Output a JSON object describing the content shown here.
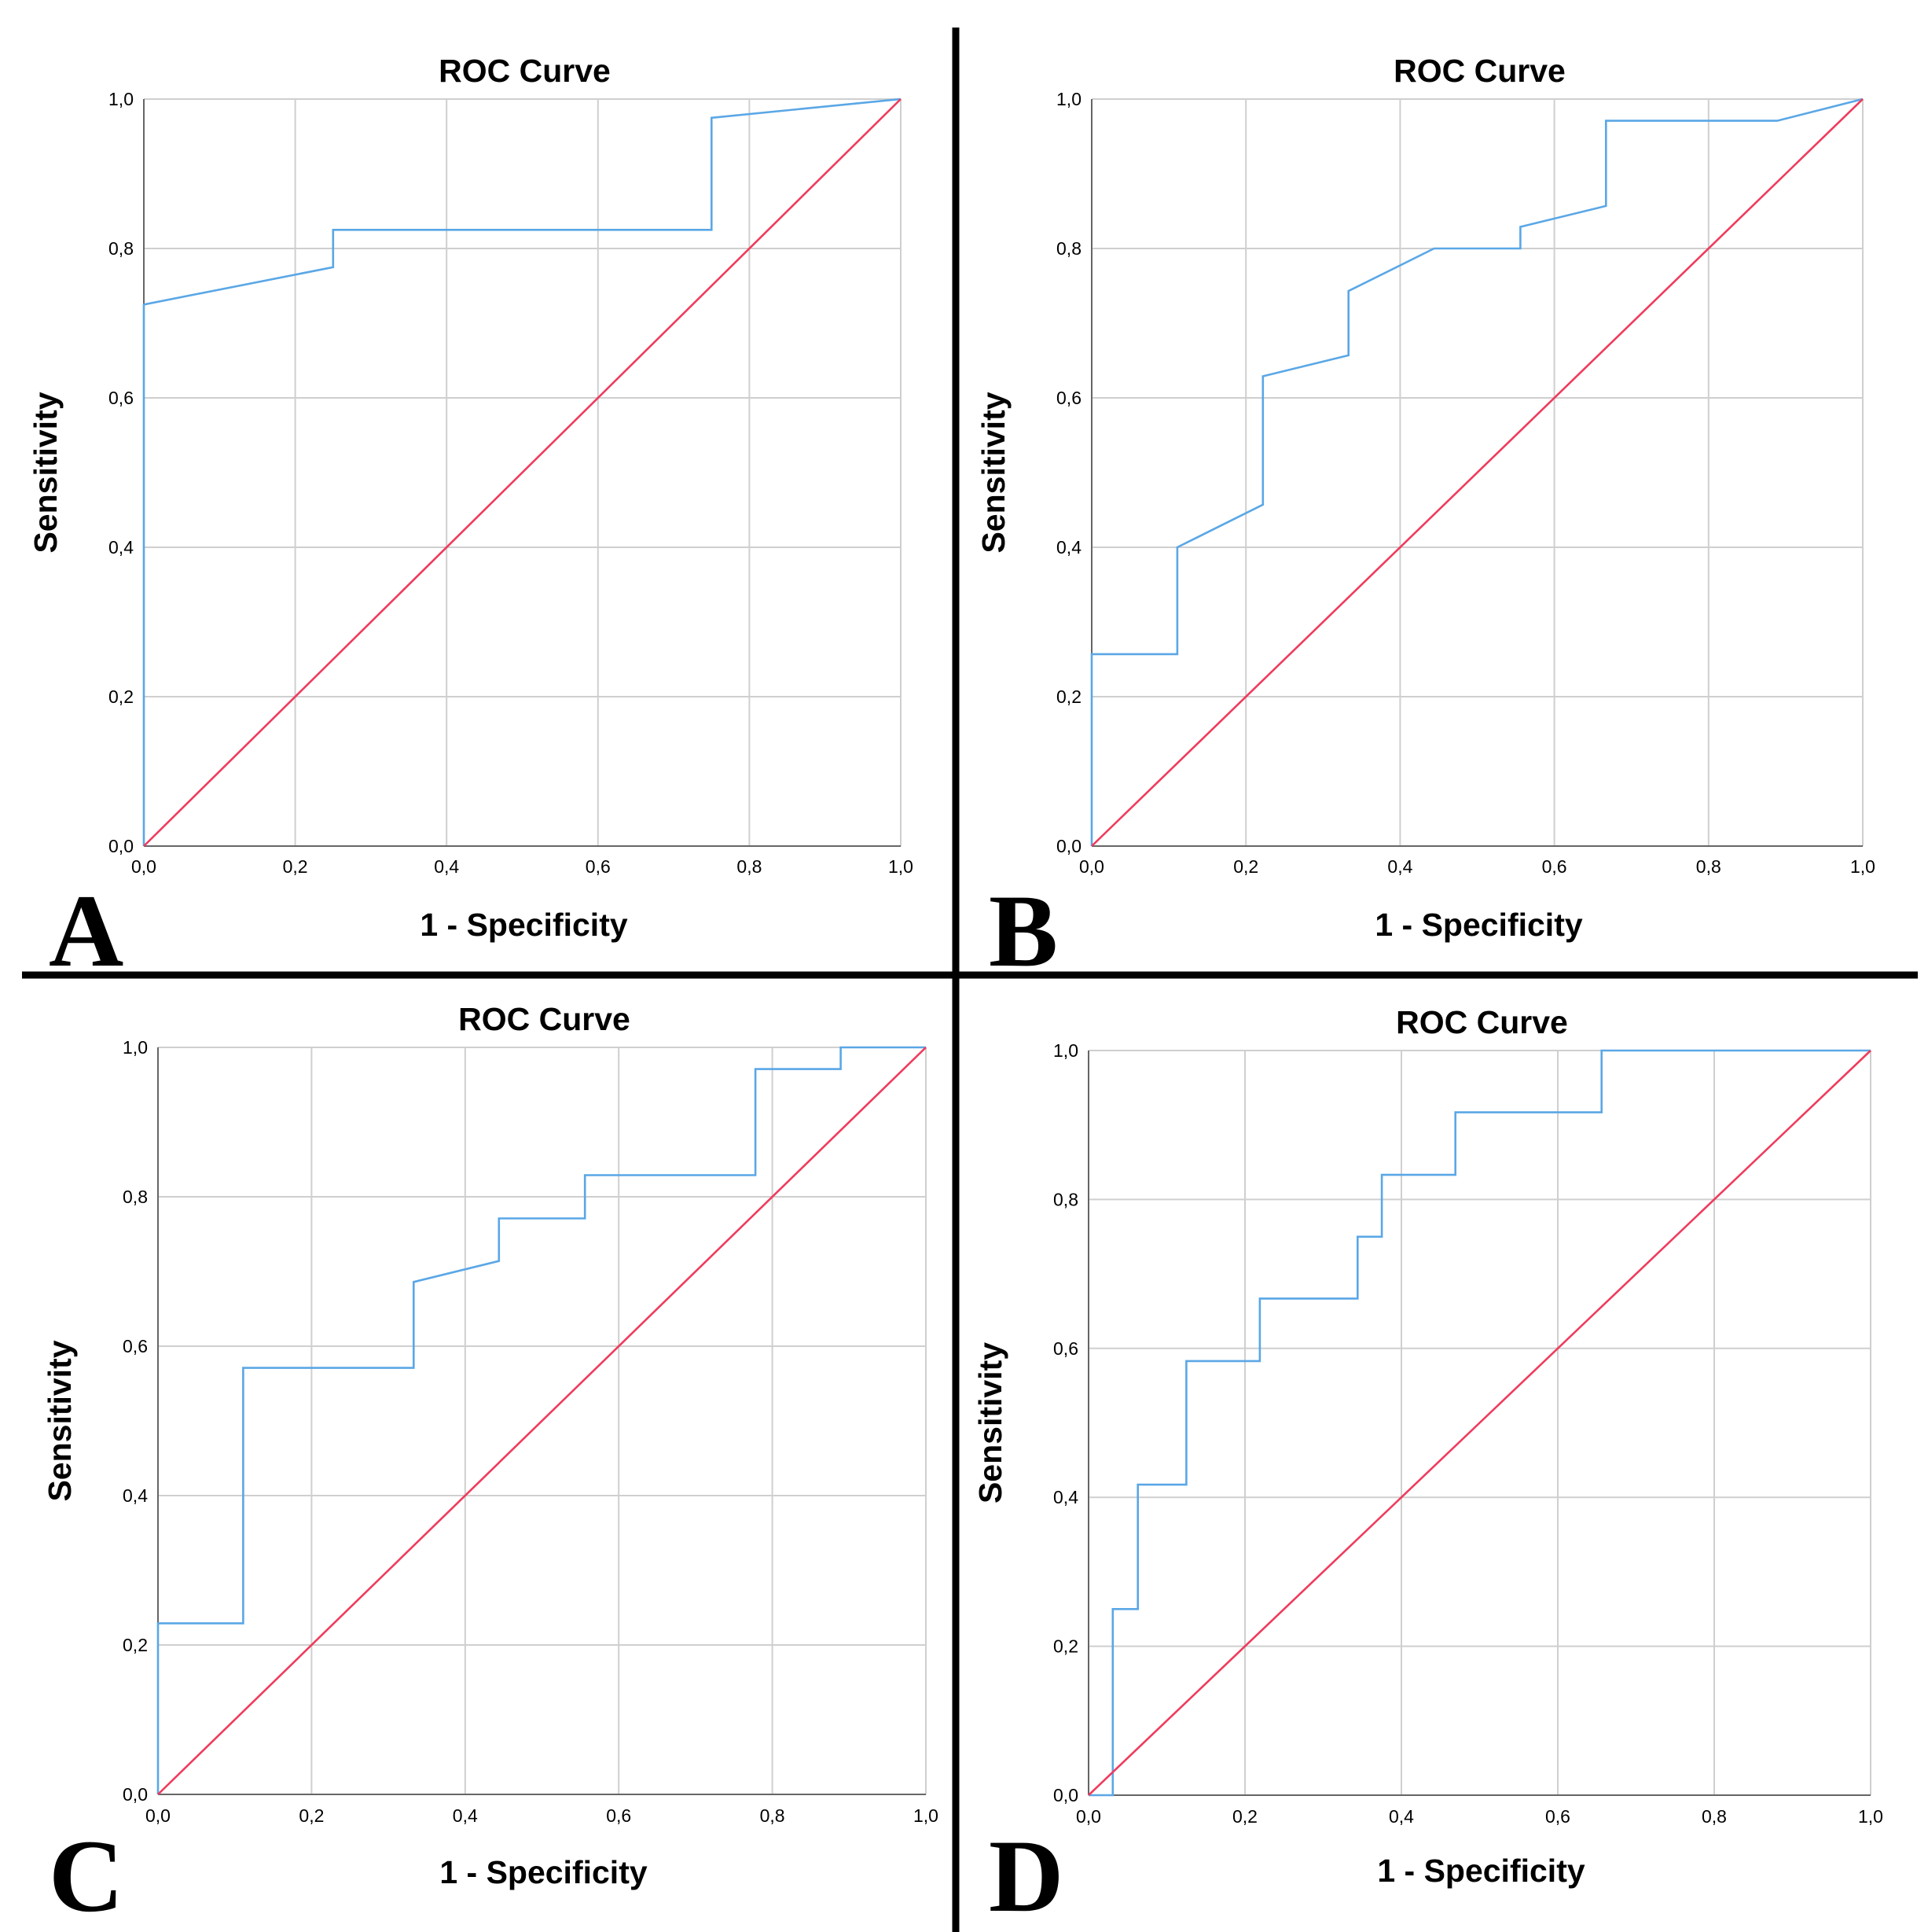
{
  "colors": {
    "roc_curve": "#5aa7e6",
    "reference_line": "#ef3b5d",
    "gridline": "#cfcfcf",
    "axis": "#666666",
    "separator": "#000000"
  },
  "chart_data": [
    {
      "type": "line",
      "panel_label": "A",
      "title": "ROC Curve",
      "xlabel": "1 - Specificity",
      "ylabel": "Sensitivity",
      "xlim": [
        0,
        1
      ],
      "ylim": [
        0,
        1
      ],
      "xticks": [
        "0,0",
        "0,2",
        "0,4",
        "0,6",
        "0,8",
        "1,0"
      ],
      "yticks": [
        "0,0",
        "0,2",
        "0,4",
        "0,6",
        "0,8",
        "1,0"
      ],
      "grid": true,
      "series": [
        {
          "name": "ROC curve",
          "x": [
            0,
            0,
            0.25,
            0.25,
            0.75,
            0.75,
            1.0
          ],
          "y": [
            0,
            0.725,
            0.775,
            0.825,
            0.825,
            0.975,
            1.0
          ]
        },
        {
          "name": "Reference line",
          "x": [
            0,
            1
          ],
          "y": [
            0,
            1
          ]
        }
      ]
    },
    {
      "type": "line",
      "panel_label": "B",
      "title": "ROC Curve",
      "xlabel": "1 - Specificity",
      "ylabel": "Sensitivity",
      "xlim": [
        0,
        1
      ],
      "ylim": [
        0,
        1
      ],
      "xticks": [
        "0,0",
        "0,2",
        "0,4",
        "0,6",
        "0,8",
        "1,0"
      ],
      "yticks": [
        "0,0",
        "0,2",
        "0,4",
        "0,6",
        "0,8",
        "1,0"
      ],
      "grid": true,
      "series": [
        {
          "name": "ROC curve",
          "x": [
            0,
            0,
            0.111,
            0.111,
            0.222,
            0.222,
            0.333,
            0.333,
            0.444,
            0.556,
            0.556,
            0.667,
            0.667,
            0.889,
            1.0
          ],
          "y": [
            0,
            0.257,
            0.257,
            0.4,
            0.457,
            0.629,
            0.657,
            0.743,
            0.8,
            0.8,
            0.829,
            0.857,
            0.971,
            0.971,
            1.0
          ]
        },
        {
          "name": "Reference line",
          "x": [
            0,
            1
          ],
          "y": [
            0,
            1
          ]
        }
      ]
    },
    {
      "type": "line",
      "panel_label": "C",
      "title": "ROC Curve",
      "xlabel": "1 - Specificity",
      "ylabel": "Sensitivity",
      "xlim": [
        0,
        1
      ],
      "ylim": [
        0,
        1
      ],
      "xticks": [
        "0,0",
        "0,2",
        "0,4",
        "0,6",
        "0,8",
        "1,0"
      ],
      "yticks": [
        "0,0",
        "0,2",
        "0,4",
        "0,6",
        "0,8",
        "1,0"
      ],
      "grid": true,
      "series": [
        {
          "name": "ROC curve",
          "x": [
            0,
            0,
            0.111,
            0.111,
            0.333,
            0.333,
            0.444,
            0.444,
            0.556,
            0.556,
            0.778,
            0.778,
            0.889,
            0.889,
            1.0
          ],
          "y": [
            0,
            0.229,
            0.229,
            0.571,
            0.571,
            0.686,
            0.714,
            0.771,
            0.771,
            0.829,
            0.829,
            0.971,
            0.971,
            1.0,
            1.0
          ]
        },
        {
          "name": "Reference line",
          "x": [
            0,
            1
          ],
          "y": [
            0,
            1
          ]
        }
      ]
    },
    {
      "type": "line",
      "panel_label": "D",
      "title": "ROC Curve",
      "xlabel": "1 - Specificity",
      "ylabel": "Sensitivity",
      "xlim": [
        0,
        1
      ],
      "ylim": [
        0,
        1
      ],
      "xticks": [
        "0,0",
        "0,2",
        "0,4",
        "0,6",
        "0,8",
        "1,0"
      ],
      "yticks": [
        "0,0",
        "0,2",
        "0,4",
        "0,6",
        "0,8",
        "1,0"
      ],
      "grid": true,
      "series": [
        {
          "name": "ROC curve",
          "x": [
            0,
            0.031,
            0.031,
            0.063,
            0.063,
            0.125,
            0.125,
            0.219,
            0.219,
            0.344,
            0.344,
            0.375,
            0.375,
            0.469,
            0.469,
            0.656,
            0.656,
            1.0
          ],
          "y": [
            0,
            0,
            0.25,
            0.25,
            0.417,
            0.417,
            0.583,
            0.583,
            0.667,
            0.667,
            0.75,
            0.75,
            0.833,
            0.833,
            0.917,
            0.917,
            1.0,
            1.0
          ]
        },
        {
          "name": "Reference line",
          "x": [
            0,
            1
          ],
          "y": [
            0,
            1
          ]
        }
      ]
    }
  ]
}
